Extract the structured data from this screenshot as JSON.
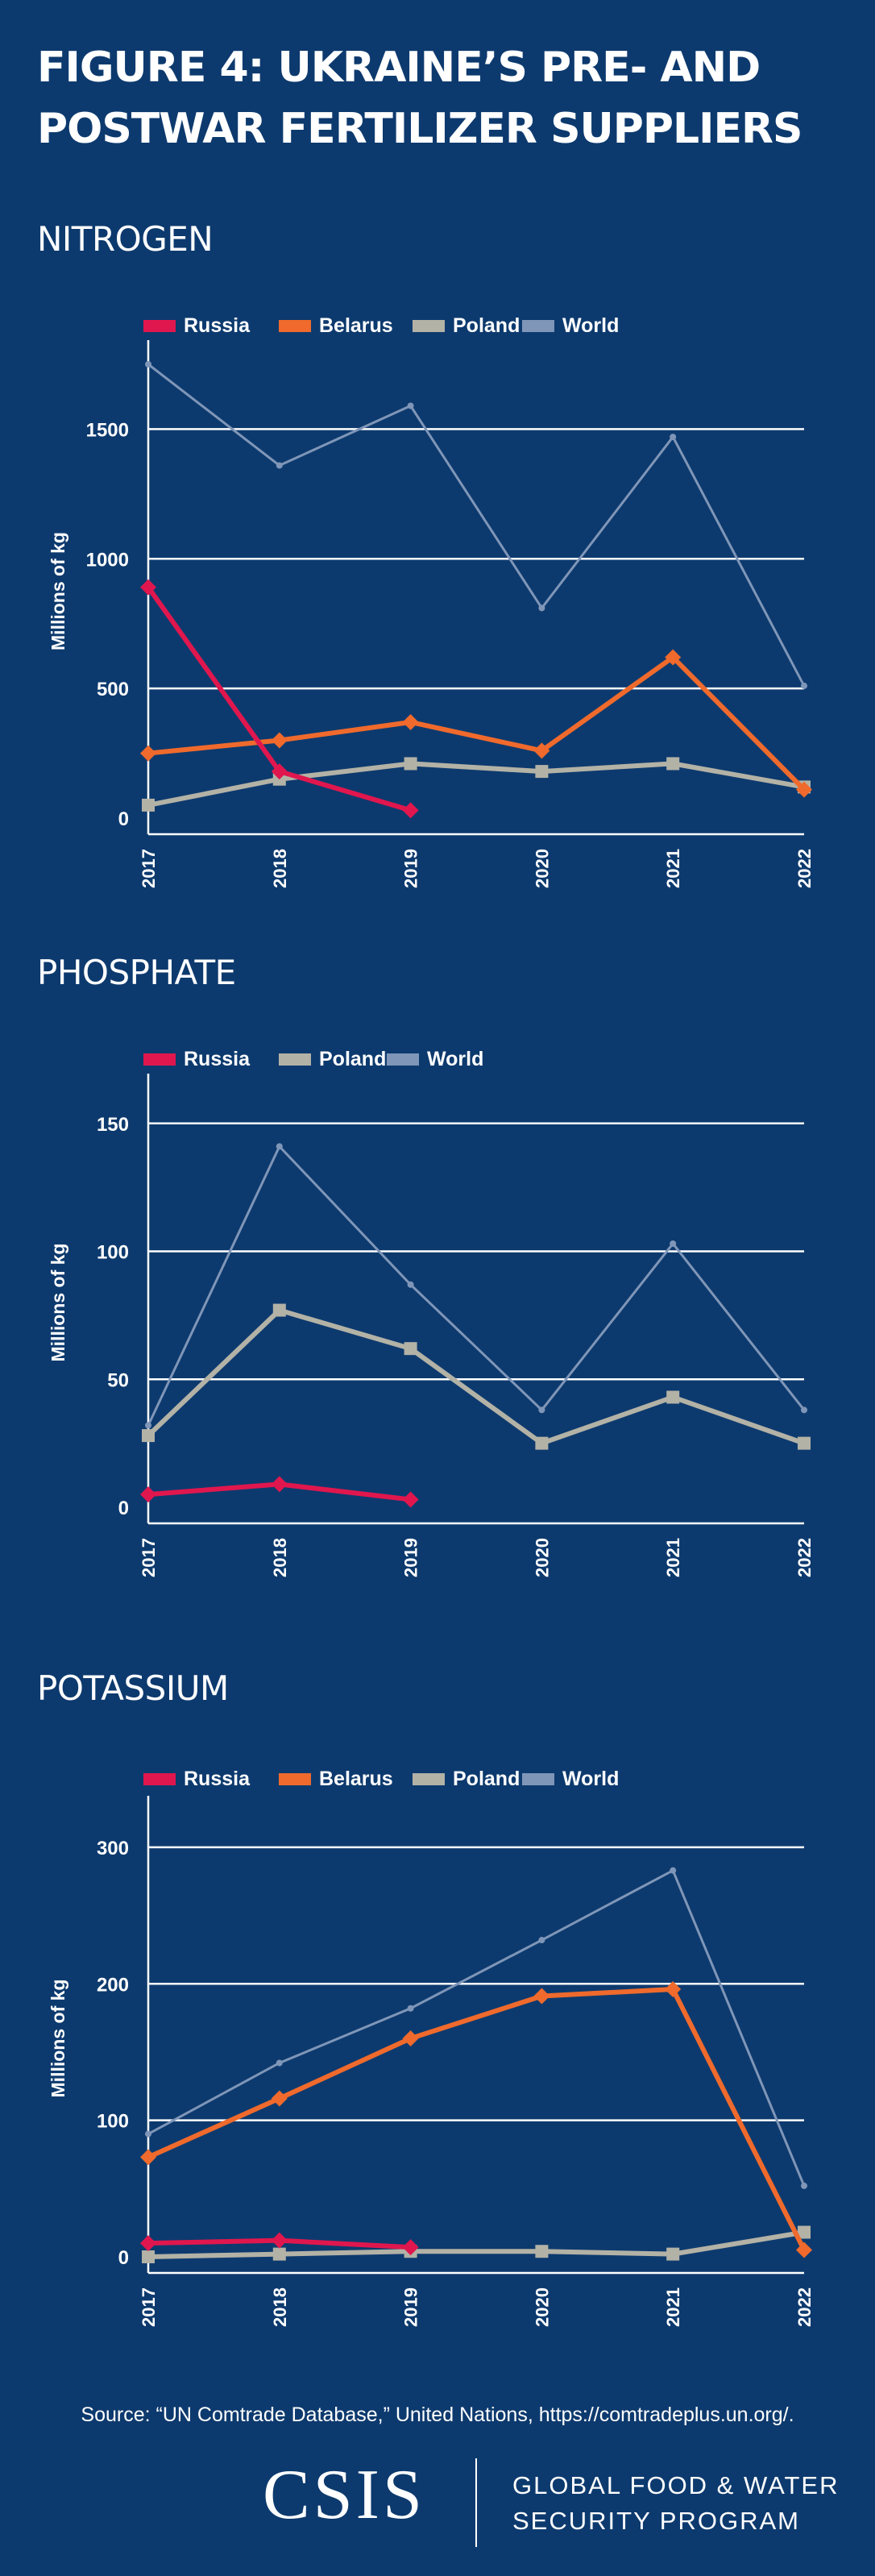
{
  "figure_title": "FIGURE 4: UKRAINE’S PRE- AND POSTWAR FERTILIZER SUPPLIERS",
  "colors": {
    "background": "#0d3a6e",
    "Russia": "#e0174e",
    "Belarus": "#ef6a2c",
    "Poland": "#b3b2a6",
    "World": "#7f96b8"
  },
  "chart_data": [
    {
      "type": "line",
      "title": "NITROGEN",
      "ylabel": "Millions of kg",
      "xlabel": "",
      "x": [
        "2017",
        "2018",
        "2019",
        "2020",
        "2021",
        "2022"
      ],
      "ylim": [
        0,
        1750
      ],
      "yticks": [
        0,
        500,
        1000,
        1500
      ],
      "grid": true,
      "legend": "top-left",
      "series": [
        {
          "name": "Russia",
          "values": [
            890,
            180,
            30,
            null,
            null,
            null
          ]
        },
        {
          "name": "Belarus",
          "values": [
            250,
            300,
            370,
            260,
            620,
            110
          ]
        },
        {
          "name": "Poland",
          "values": [
            50,
            150,
            210,
            180,
            210,
            120
          ]
        },
        {
          "name": "World",
          "values": [
            1750,
            1360,
            1590,
            810,
            1470,
            510
          ]
        }
      ]
    },
    {
      "type": "line",
      "title": "PHOSPHATE",
      "ylabel": "Millions of kg",
      "xlabel": "",
      "x": [
        "2017",
        "2018",
        "2019",
        "2020",
        "2021",
        "2022"
      ],
      "ylim": [
        0,
        160
      ],
      "yticks": [
        0,
        50,
        100,
        150
      ],
      "grid": true,
      "legend": "top-left",
      "series": [
        {
          "name": "Russia",
          "values": [
            5,
            9,
            3,
            null,
            null,
            null
          ]
        },
        {
          "name": "Poland",
          "values": [
            28,
            77,
            62,
            25,
            43,
            25
          ]
        },
        {
          "name": "World",
          "values": [
            32,
            141,
            87,
            38,
            103,
            38
          ]
        }
      ]
    },
    {
      "type": "line",
      "title": "POTASSIUM",
      "ylabel": "Millions of kg",
      "xlabel": "",
      "x": [
        "2017",
        "2018",
        "2019",
        "2020",
        "2021",
        "2022"
      ],
      "ylim": [
        0,
        320
      ],
      "yticks": [
        0,
        100,
        200,
        300
      ],
      "grid": true,
      "legend": "top-left",
      "series": [
        {
          "name": "Russia",
          "values": [
            10,
            12,
            7,
            null,
            null,
            null
          ]
        },
        {
          "name": "Belarus",
          "values": [
            73,
            116,
            160,
            191,
            196,
            5
          ]
        },
        {
          "name": "Poland",
          "values": [
            0,
            2,
            4,
            4,
            2,
            18
          ]
        },
        {
          "name": "World",
          "values": [
            90,
            142,
            182,
            232,
            283,
            52
          ]
        }
      ]
    }
  ],
  "source": "Source: “UN Comtrade Database,” United Nations, https://comtradeplus.un.org/.",
  "footer": {
    "logo": "CSIS",
    "program_line1": "GLOBAL FOOD & WATER",
    "program_line2": "SECURITY PROGRAM"
  }
}
